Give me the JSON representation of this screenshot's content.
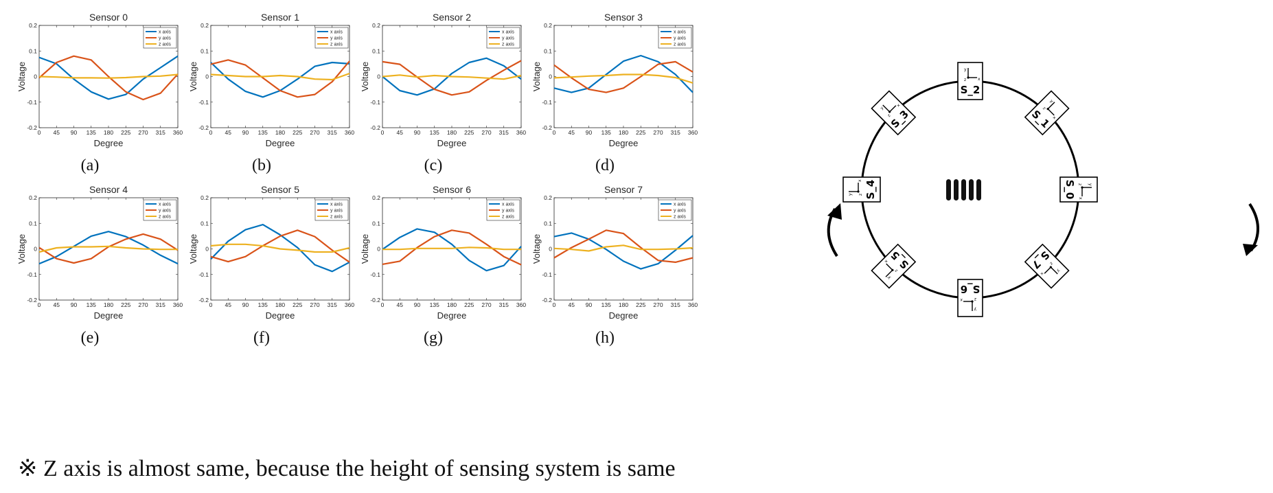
{
  "chart_data": [
    {
      "type": "line",
      "panel": "(a)",
      "title": "Sensor 0",
      "xlabel": "Degree",
      "ylabel": "Voltage",
      "x": [
        0,
        45,
        90,
        135,
        180,
        225,
        270,
        315,
        360
      ],
      "xlim": [
        0,
        360
      ],
      "ylim": [
        -0.2,
        0.2
      ],
      "xticks": [
        "0",
        "45",
        "90",
        "135",
        "180",
        "225",
        "270",
        "315",
        "360"
      ],
      "yticks": [
        "0.2",
        "0.1",
        "0",
        "-0.1",
        "-0.2"
      ],
      "legend": "top-right",
      "series": [
        {
          "name": "x axis",
          "color": "#0072BD",
          "values": [
            0.075,
            0.05,
            -0.01,
            -0.06,
            -0.088,
            -0.07,
            -0.01,
            0.035,
            0.08
          ]
        },
        {
          "name": "y axis",
          "color": "#D95319",
          "values": [
            -0.005,
            0.055,
            0.08,
            0.065,
            0.0,
            -0.06,
            -0.09,
            -0.065,
            0.01
          ]
        },
        {
          "name": "z axis",
          "color": "#EDB120",
          "values": [
            0.0,
            -0.002,
            -0.005,
            -0.005,
            -0.006,
            -0.004,
            0.0,
            0.002,
            0.008
          ]
        }
      ]
    },
    {
      "type": "line",
      "panel": "(b)",
      "title": "Sensor 1",
      "xlabel": "Degree",
      "ylabel": "Voltage",
      "x": [
        0,
        45,
        90,
        135,
        180,
        225,
        270,
        315,
        360
      ],
      "xlim": [
        0,
        360
      ],
      "ylim": [
        -0.2,
        0.2
      ],
      "xticks": [
        "0",
        "45",
        "90",
        "135",
        "180",
        "225",
        "270",
        "315",
        "360"
      ],
      "yticks": [
        "0.2",
        "0.1",
        "0",
        "-0.1",
        "-0.2"
      ],
      "legend": "top-right",
      "series": [
        {
          "name": "x axis",
          "color": "#0072BD",
          "values": [
            0.055,
            -0.01,
            -0.058,
            -0.08,
            -0.055,
            -0.01,
            0.04,
            0.055,
            0.05
          ]
        },
        {
          "name": "y axis",
          "color": "#D95319",
          "values": [
            0.048,
            0.065,
            0.045,
            -0.005,
            -0.055,
            -0.08,
            -0.07,
            -0.02,
            0.06
          ]
        },
        {
          "name": "z axis",
          "color": "#EDB120",
          "values": [
            0.008,
            0.004,
            0.0,
            0.0,
            0.004,
            0.0,
            -0.01,
            -0.012,
            0.012
          ]
        }
      ]
    },
    {
      "type": "line",
      "panel": "(c)",
      "title": "Sensor 2",
      "xlabel": "Degree",
      "ylabel": "Voltage",
      "x": [
        0,
        45,
        90,
        135,
        180,
        225,
        270,
        315,
        360
      ],
      "xlim": [
        0,
        360
      ],
      "ylim": [
        -0.2,
        0.2
      ],
      "xticks": [
        "0",
        "45",
        "90",
        "135",
        "180",
        "225",
        "270",
        "315",
        "360"
      ],
      "yticks": [
        "0.2",
        "0.1",
        "0",
        "-0.1",
        "-0.2"
      ],
      "legend": "top-right",
      "series": [
        {
          "name": "x axis",
          "color": "#0072BD",
          "values": [
            0.0,
            -0.055,
            -0.072,
            -0.048,
            0.012,
            0.055,
            0.072,
            0.042,
            -0.01
          ]
        },
        {
          "name": "y axis",
          "color": "#D95319",
          "values": [
            0.058,
            0.048,
            -0.002,
            -0.05,
            -0.072,
            -0.06,
            -0.015,
            0.025,
            0.062
          ]
        },
        {
          "name": "z axis",
          "color": "#EDB120",
          "values": [
            0.0,
            0.006,
            -0.002,
            0.004,
            0.0,
            -0.002,
            -0.006,
            -0.01,
            0.004
          ]
        }
      ]
    },
    {
      "type": "line",
      "panel": "(d)",
      "title": "Sensor 3",
      "xlabel": "Degree",
      "ylabel": "Voltage",
      "x": [
        0,
        45,
        90,
        135,
        180,
        225,
        270,
        315,
        360
      ],
      "xlim": [
        0,
        360
      ],
      "ylim": [
        -0.2,
        0.2
      ],
      "xticks": [
        "0",
        "45",
        "90",
        "135",
        "180",
        "225",
        "270",
        "315",
        "360"
      ],
      "yticks": [
        "0.2",
        "0.1",
        "0",
        "-0.1",
        "-0.2"
      ],
      "legend": "top-right",
      "series": [
        {
          "name": "x axis",
          "color": "#0072BD",
          "values": [
            -0.045,
            -0.062,
            -0.045,
            0.008,
            0.06,
            0.082,
            0.058,
            0.008,
            -0.062
          ]
        },
        {
          "name": "y axis",
          "color": "#D95319",
          "values": [
            0.045,
            -0.005,
            -0.05,
            -0.062,
            -0.045,
            0.0,
            0.048,
            0.058,
            0.018
          ]
        },
        {
          "name": "z axis",
          "color": "#EDB120",
          "values": [
            -0.005,
            -0.002,
            0.002,
            0.004,
            0.008,
            0.008,
            0.004,
            -0.004,
            -0.025
          ]
        }
      ]
    },
    {
      "type": "line",
      "panel": "(e)",
      "title": "Sensor 4",
      "xlabel": "Degree",
      "ylabel": "Voltage",
      "x": [
        0,
        45,
        90,
        135,
        180,
        225,
        270,
        315,
        360
      ],
      "xlim": [
        0,
        360
      ],
      "ylim": [
        -0.2,
        0.2
      ],
      "xticks": [
        "0",
        "45",
        "90",
        "135",
        "180",
        "225",
        "270",
        "315",
        "360"
      ],
      "yticks": [
        "0.2",
        "0.1",
        "0",
        "-0.1",
        "-0.2"
      ],
      "legend": "top-right",
      "series": [
        {
          "name": "x axis",
          "color": "#0072BD",
          "values": [
            -0.058,
            -0.03,
            0.01,
            0.05,
            0.068,
            0.048,
            0.015,
            -0.025,
            -0.058
          ]
        },
        {
          "name": "y axis",
          "color": "#D95319",
          "values": [
            0.005,
            -0.038,
            -0.055,
            -0.038,
            0.008,
            0.038,
            0.058,
            0.038,
            -0.005
          ]
        },
        {
          "name": "z axis",
          "color": "#EDB120",
          "values": [
            -0.012,
            0.004,
            0.008,
            0.008,
            0.01,
            0.004,
            0.0,
            -0.002,
            -0.002
          ]
        }
      ]
    },
    {
      "type": "line",
      "panel": "(f)",
      "title": "Sensor 5",
      "xlabel": "Degree",
      "ylabel": "Voltage",
      "x": [
        0,
        45,
        90,
        135,
        180,
        225,
        270,
        315,
        360
      ],
      "xlim": [
        0,
        360
      ],
      "ylim": [
        -0.2,
        0.2
      ],
      "xticks": [
        "0",
        "45",
        "90",
        "135",
        "180",
        "225",
        "270",
        "315",
        "360"
      ],
      "yticks": [
        "0.2",
        "0.1",
        "0",
        "-0.1",
        "-0.2"
      ],
      "legend": "top-right",
      "series": [
        {
          "name": "x axis",
          "color": "#0072BD",
          "values": [
            -0.04,
            0.03,
            0.075,
            0.095,
            0.055,
            0.005,
            -0.062,
            -0.088,
            -0.052
          ]
        },
        {
          "name": "y axis",
          "color": "#D95319",
          "values": [
            -0.03,
            -0.05,
            -0.03,
            0.012,
            0.05,
            0.073,
            0.048,
            -0.005,
            -0.052
          ]
        },
        {
          "name": "z axis",
          "color": "#EDB120",
          "values": [
            0.012,
            0.018,
            0.018,
            0.012,
            0.0,
            -0.005,
            -0.012,
            -0.012,
            0.004
          ]
        }
      ]
    },
    {
      "type": "line",
      "panel": "(g)",
      "title": "Sensor 6",
      "xlabel": "Degree",
      "ylabel": "Voltage",
      "x": [
        0,
        45,
        90,
        135,
        180,
        225,
        270,
        315,
        360
      ],
      "xlim": [
        0,
        360
      ],
      "ylim": [
        -0.2,
        0.2
      ],
      "xticks": [
        "0",
        "45",
        "90",
        "135",
        "180",
        "225",
        "270",
        "315",
        "360"
      ],
      "yticks": [
        "0.2",
        "0.1",
        "0",
        "-0.1",
        "-0.2"
      ],
      "legend": "top-right",
      "series": [
        {
          "name": "x axis",
          "color": "#0072BD",
          "values": [
            -0.002,
            0.045,
            0.078,
            0.065,
            0.018,
            -0.045,
            -0.085,
            -0.065,
            0.01
          ]
        },
        {
          "name": "y axis",
          "color": "#D95319",
          "values": [
            -0.06,
            -0.048,
            0.005,
            0.048,
            0.073,
            0.062,
            0.018,
            -0.03,
            -0.062
          ]
        },
        {
          "name": "z axis",
          "color": "#EDB120",
          "values": [
            -0.002,
            -0.002,
            0.002,
            0.002,
            0.002,
            0.006,
            0.004,
            -0.002,
            -0.002
          ]
        }
      ]
    },
    {
      "type": "line",
      "panel": "(h)",
      "title": "Sensor 7",
      "xlabel": "Degree",
      "ylabel": "Voltage",
      "x": [
        0,
        45,
        90,
        135,
        180,
        225,
        270,
        315,
        360
      ],
      "xlim": [
        0,
        360
      ],
      "ylim": [
        -0.2,
        0.2
      ],
      "xticks": [
        "0",
        "45",
        "90",
        "135",
        "180",
        "225",
        "270",
        "315",
        "360"
      ],
      "yticks": [
        "0.2",
        "0.1",
        "0",
        "-0.1",
        "-0.2"
      ],
      "legend": "top-right",
      "series": [
        {
          "name": "x axis",
          "color": "#0072BD",
          "values": [
            0.048,
            0.062,
            0.038,
            -0.002,
            -0.048,
            -0.078,
            -0.058,
            -0.005,
            0.052
          ]
        },
        {
          "name": "y axis",
          "color": "#D95319",
          "values": [
            -0.035,
            0.005,
            0.038,
            0.073,
            0.06,
            0.005,
            -0.045,
            -0.052,
            -0.035
          ]
        },
        {
          "name": "z axis",
          "color": "#EDB120",
          "values": [
            0.002,
            -0.002,
            -0.008,
            0.008,
            0.014,
            -0.002,
            -0.002,
            0.0,
            0.004
          ]
        }
      ]
    }
  ],
  "note": "※ Z axis is almost same, because the height of sensing system is same",
  "diagram": {
    "sensors": [
      {
        "label": "S_0",
        "angle": 0
      },
      {
        "label": "S_1",
        "angle": 45
      },
      {
        "label": "S_2",
        "angle": 90
      },
      {
        "label": "S_3",
        "angle": 135
      },
      {
        "label": "S_4",
        "angle": 180
      },
      {
        "label": "S_5",
        "angle": 225
      },
      {
        "label": "S_6",
        "angle": 270
      },
      {
        "label": "S_7",
        "angle": 315
      }
    ],
    "axis_letters": {
      "x": "x",
      "y": "y",
      "z": "z"
    }
  }
}
